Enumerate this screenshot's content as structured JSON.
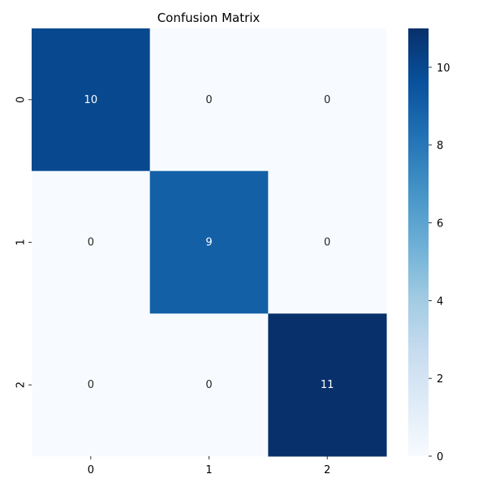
{
  "chart_data": {
    "type": "heatmap",
    "title": "Confusion Matrix",
    "xlabel": "",
    "ylabel": "",
    "x_tick_labels": [
      "0",
      "1",
      "2"
    ],
    "y_tick_labels": [
      "0",
      "1",
      "2"
    ],
    "values": [
      [
        10,
        0,
        0
      ],
      [
        0,
        9,
        0
      ],
      [
        0,
        0,
        11
      ]
    ],
    "annotations": [
      [
        "10",
        "0",
        "0"
      ],
      [
        "0",
        "9",
        "0"
      ],
      [
        "0",
        "0",
        "11"
      ]
    ],
    "colormap": "Blues",
    "color_range": [
      0,
      11
    ],
    "colorbar_ticks": [
      "0",
      "2",
      "4",
      "6",
      "8",
      "10"
    ],
    "colors": {
      "low": "#f7fbff",
      "high": "#08306b",
      "annotation_dark_text": "#262626",
      "annotation_light_text": "#ffffff"
    }
  }
}
